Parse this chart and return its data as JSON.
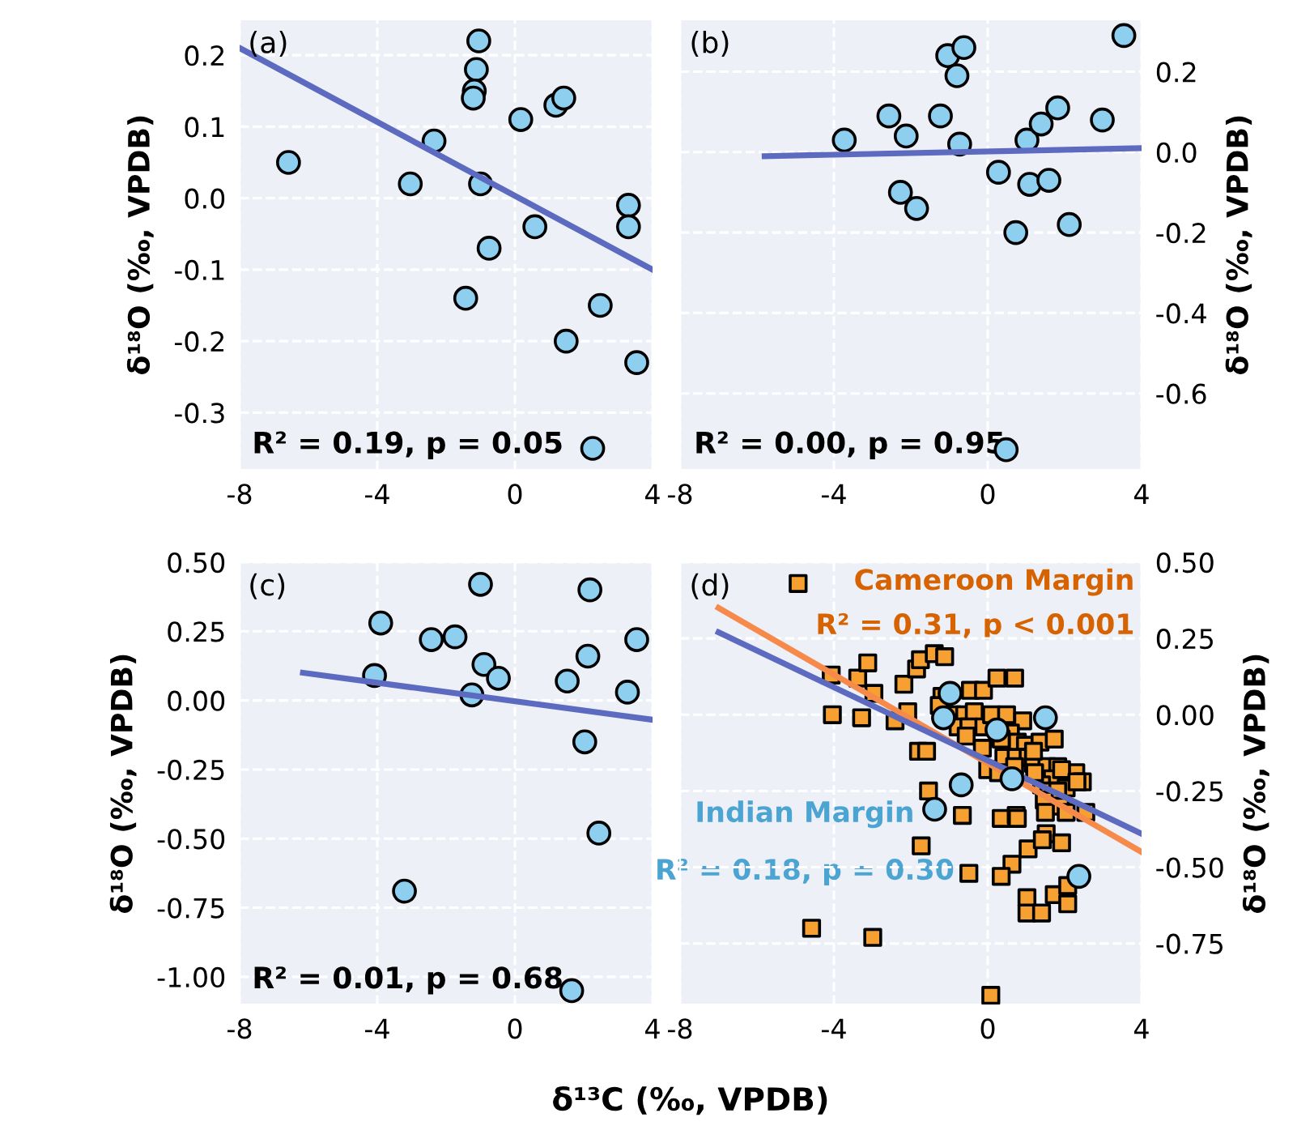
{
  "chart_data": [
    {
      "type": "scatter",
      "annotations": [
        "(a)",
        "R² = 0.19, p = 0.05"
      ],
      "ylabel": "δ¹⁸O (‰, VPDB)",
      "xlim": [
        -8,
        4
      ],
      "xticks": [
        -8,
        -4,
        0,
        4
      ],
      "ylim": [
        -0.38,
        0.25
      ],
      "yticks": [
        -0.3,
        -0.2,
        -0.1,
        {
          "value": 0.0,
          "label": "0.0"
        },
        0.1,
        0.2
      ],
      "grid": true,
      "legend": false,
      "series": [
        {
          "marker": "circle",
          "color": "#8ecff0",
          "x": [
            -6.58,
            -3.04,
            -2.35,
            -1.05,
            -1.12,
            -1.18,
            -1.21,
            -1.0,
            -0.75,
            -1.43,
            0.17,
            1.19,
            1.42,
            0.58,
            3.3,
            3.3,
            2.48,
            1.49,
            3.54,
            2.26
          ],
          "values": [
            0.05,
            0.02,
            0.08,
            0.22,
            0.18,
            0.15,
            0.14,
            0.02,
            -0.07,
            -0.14,
            0.11,
            0.13,
            0.14,
            -0.04,
            -0.01,
            -0.04,
            -0.15,
            -0.2,
            -0.23,
            -0.35
          ]
        },
        {
          "type": "line",
          "color": "#5c6bc0",
          "x": [
            -8,
            4
          ],
          "values": [
            0.21,
            -0.1
          ]
        }
      ]
    },
    {
      "type": "scatter",
      "annotations": [
        "(b)",
        "R² = 0.00, p = 0.95"
      ],
      "y2label": "δ¹⁸O (‰, VPDB)",
      "xlim": [
        -8,
        4
      ],
      "xticks": [
        -8,
        -4,
        0,
        4
      ],
      "y2lim": [
        -0.79,
        0.33
      ],
      "y2ticks": [
        -0.6,
        -0.4,
        -0.2,
        {
          "value": 0.0,
          "label": "0.0"
        },
        0.2
      ],
      "grid": true,
      "legend": false,
      "series": [
        {
          "axis": "y2",
          "marker": "circle",
          "color": "#8ecff0",
          "x": [
            -3.73,
            -2.57,
            -2.12,
            -2.27,
            -1.85,
            -1.23,
            -1.04,
            -0.62,
            -0.8,
            -0.73,
            0.28,
            1.02,
            1.39,
            1.82,
            1.09,
            1.59,
            0.73,
            2.12,
            2.98,
            3.54,
            0.48
          ],
          "values": [
            0.03,
            0.09,
            0.04,
            -0.1,
            -0.14,
            0.09,
            0.24,
            0.26,
            0.19,
            0.02,
            -0.05,
            0.03,
            0.07,
            0.11,
            -0.08,
            -0.07,
            -0.2,
            -0.18,
            0.08,
            0.29,
            -0.74
          ]
        },
        {
          "axis": "y2",
          "type": "line",
          "color": "#5c6bc0",
          "x": [
            -5.8,
            4
          ],
          "values": [
            -0.01,
            0.01
          ]
        }
      ]
    },
    {
      "type": "scatter",
      "annotations": [
        "(c)",
        "R² = 0.01, p = 0.68"
      ],
      "ylabel": "δ¹⁸O (‰, VPDB)",
      "xlabel": "δ¹³C (‰, VPDB)",
      "xlim": [
        -8,
        4
      ],
      "xticks": [
        -8,
        -4,
        0,
        4
      ],
      "ylim": [
        -1.1,
        0.5
      ],
      "yticks": [
        {
          "value": -1.0,
          "label": "-1.00"
        },
        {
          "value": -0.75,
          "label": "-0.75"
        },
        {
          "value": -0.5,
          "label": "-0.50"
        },
        {
          "value": -0.25,
          "label": "-0.25"
        },
        {
          "value": 0.0,
          "label": "0.00"
        },
        {
          "value": 0.25,
          "label": "0.25"
        },
        {
          "value": 0.5,
          "label": "0.50"
        }
      ],
      "grid": true,
      "legend": false,
      "series": [
        {
          "marker": "circle",
          "color": "#8ecff0",
          "x": [
            -3.9,
            -4.08,
            -3.21,
            -2.43,
            -1.74,
            -1.0,
            -0.9,
            -0.48,
            -1.25,
            1.52,
            2.12,
            2.18,
            2.03,
            2.44,
            1.65,
            3.27,
            3.54
          ],
          "values": [
            0.28,
            0.09,
            -0.69,
            0.22,
            0.23,
            0.42,
            0.13,
            0.08,
            0.02,
            0.07,
            0.16,
            0.4,
            -0.15,
            -0.48,
            -1.05,
            0.03,
            0.22
          ]
        },
        {
          "type": "line",
          "color": "#5c6bc0",
          "x": [
            -6.16,
            4
          ],
          "values": [
            0.1,
            -0.07
          ]
        }
      ]
    },
    {
      "type": "scatter",
      "annotations": [
        "(d)",
        "R² = 0.31, p < 0.001",
        "R² = 0.18, p = 0.30"
      ],
      "y2label": "δ¹⁸O (‰, VPDB)",
      "xlim": [
        -8,
        4
      ],
      "xticks": [
        -8,
        -4,
        0,
        4
      ],
      "y2lim": [
        -0.95,
        0.5
      ],
      "y2ticks": [
        {
          "value": -0.75,
          "label": "-0.75"
        },
        {
          "value": -0.5,
          "label": "-0.50"
        },
        {
          "value": -0.25,
          "label": "-0.25"
        },
        {
          "value": 0.0,
          "label": "0.00"
        },
        {
          "value": 0.25,
          "label": "0.25"
        },
        {
          "value": 0.5,
          "label": "0.50"
        }
      ],
      "grid": true,
      "legend": false,
      "series": [
        {
          "name": "Cameroon Margin",
          "axis": "y2",
          "marker": "square",
          "color": "#f5a030",
          "x": [
            -4.93,
            -4.07,
            -3.38,
            -3.12,
            -2.96,
            -4.04,
            -3.28,
            -2.18,
            -2.41,
            -2.08,
            -1.85,
            -1.75,
            -1.39,
            -1.12,
            -1.8,
            -1.59,
            -1.54,
            -1.73,
            -0.66,
            -0.49,
            -4.58,
            -2.99,
            0.08,
            -1.19,
            -1.26,
            -0.91,
            -0.6,
            -0.35,
            -0.77,
            -0.49,
            -0.56,
            -0.1,
            0.1,
            0.49,
            0.91,
            -0.45,
            -0.11,
            0.24,
            0.7,
            0.59,
            0.77,
            0.98,
            1.36,
            1.73,
            0.42,
            0.74,
            1.05,
            1.19,
            0.0,
            0.28,
            0.7,
            1.54,
            1.82,
            2.29,
            2.46,
            1.68,
            2.04,
            1.4,
            1.59,
            1.82,
            1.47,
            1.89,
            2.55,
            1.5,
            2.04,
            0.35,
            0.74,
            0.77,
            1.52,
            1.05,
            1.42,
            1.92,
            0.63,
            0.35,
            1.02,
            1.02,
            1.4,
            1.73,
            2.08,
            2.08,
            -0.14,
            0.35,
            1.19,
            1.92,
            2.32,
            1.22
          ],
          "values": [
            0.43,
            0.13,
            0.12,
            0.17,
            0.07,
            0.0,
            -0.01,
            0.1,
            -0.02,
            0.01,
            0.15,
            0.18,
            0.2,
            0.19,
            -0.12,
            -0.12,
            -0.25,
            -0.43,
            -0.33,
            -0.52,
            -0.7,
            -0.73,
            -0.92,
            0.06,
            0.03,
            0.0,
            0.0,
            0.01,
            -0.04,
            -0.04,
            -0.07,
            -0.04,
            0.0,
            0.0,
            -0.02,
            0.08,
            0.08,
            0.12,
            0.12,
            -0.06,
            -0.09,
            -0.1,
            -0.09,
            -0.08,
            -0.14,
            -0.14,
            -0.14,
            -0.16,
            -0.18,
            -0.19,
            -0.17,
            -0.17,
            -0.17,
            -0.19,
            -0.22,
            -0.21,
            -0.24,
            -0.23,
            -0.25,
            -0.25,
            -0.28,
            -0.3,
            -0.32,
            -0.32,
            -0.32,
            -0.34,
            -0.33,
            -0.34,
            -0.39,
            -0.44,
            -0.41,
            -0.42,
            -0.49,
            -0.53,
            -0.6,
            -0.65,
            -0.65,
            -0.59,
            -0.56,
            -0.62,
            -0.11,
            -0.08,
            -0.12,
            -0.18,
            -0.22,
            -0.19
          ]
        },
        {
          "axis": "y2",
          "type": "line",
          "color": "#f58a4b",
          "x": [
            -7.0,
            4.0
          ],
          "values": [
            0.35,
            -0.45
          ]
        },
        {
          "axis": "y2",
          "type": "line",
          "color": "#5c6bc0",
          "x": [
            -7.0,
            4.0
          ],
          "values": [
            0.27,
            -0.39
          ]
        },
        {
          "name": "Indian Margin",
          "axis": "y2",
          "marker": "circle",
          "color": "#8ecff0",
          "x": [
            -0.98,
            -1.15,
            0.24,
            1.5,
            0.63,
            -0.69,
            -1.38,
            2.37
          ],
          "values": [
            0.07,
            -0.01,
            -0.05,
            -0.01,
            -0.21,
            -0.23,
            -0.31,
            -0.53
          ]
        }
      ]
    }
  ]
}
